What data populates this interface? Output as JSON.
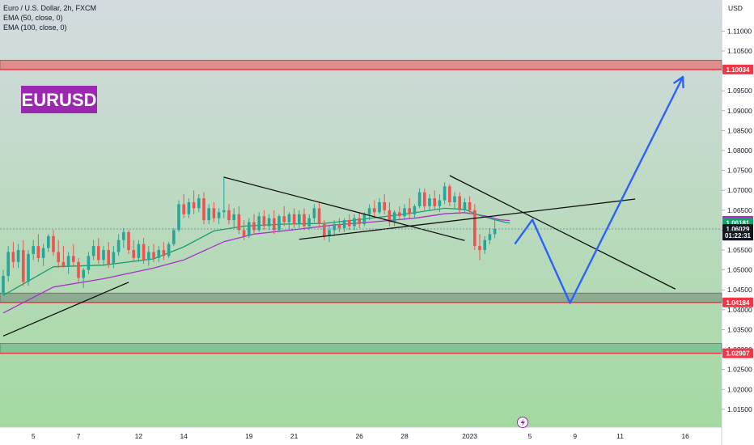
{
  "header": {
    "symbol_line": "Euro / U.S. Dollar, 2h, FXCM",
    "indicators": [
      "EMA (50, close, 0)",
      "EMA (100, close, 0)"
    ]
  },
  "watermark_label": "EURUSD",
  "colors": {
    "bg_top": "#d4dbe0",
    "bg_bottom": "#a3d9a0",
    "ema50": "#16a06a",
    "ema100": "#a533c8",
    "up_candle": "#26a69a",
    "down_candle": "#ef5350",
    "resistance_line": "#f23645",
    "projection": "#2962ff",
    "trend_line": "#111111",
    "label_purple": "#9c27b0"
  },
  "chart_data": {
    "type": "candlestick",
    "currency_label": "USD",
    "ylim": [
      1.0105,
      1.1178
    ],
    "y_ticks": [
      "1.11000",
      "1.10500",
      "1.10000",
      "1.09500",
      "1.09000",
      "1.08500",
      "1.08000",
      "1.07500",
      "1.07000",
      "1.06500",
      "1.06000",
      "1.05500",
      "1.05000",
      "1.04500",
      "1.04000",
      "1.03500",
      "1.03000",
      "1.02500",
      "1.02000",
      "1.01500"
    ],
    "x_ticks": [
      {
        "label": "5",
        "idx": 6
      },
      {
        "label": "7",
        "idx": 15
      },
      {
        "label": "12",
        "idx": 27
      },
      {
        "label": "14",
        "idx": 36
      },
      {
        "label": "19",
        "idx": 49
      },
      {
        "label": "21",
        "idx": 58
      },
      {
        "label": "26",
        "idx": 71
      },
      {
        "label": "28",
        "idx": 80
      },
      {
        "label": "2023",
        "idx": 93
      },
      {
        "label": "5",
        "idx": 105
      },
      {
        "label": "9",
        "idx": 114
      },
      {
        "label": "11",
        "idx": 123
      },
      {
        "label": "16",
        "idx": 136
      }
    ],
    "price_labels": [
      {
        "text": "1.10034",
        "value": 1.10034,
        "color": "#f23645"
      },
      {
        "text": "1.06235",
        "value": 1.06235,
        "color": "#a533c8"
      },
      {
        "text": "1.06181",
        "value": 1.06181,
        "color": "#16a06a"
      },
      {
        "text": "1.06029",
        "value": 1.06029,
        "color": "#131722"
      },
      {
        "text": "01:22:31",
        "value": 1.05862,
        "color": "#131722"
      },
      {
        "text": "1.04184",
        "value": 1.04184,
        "color": "#f23645"
      },
      {
        "text": "1.02907",
        "value": 1.02907,
        "color": "#f23645"
      }
    ],
    "zones": [
      {
        "from": 1.10034,
        "to": 1.1027,
        "color": "#e57373",
        "line": "#f23645"
      },
      {
        "from": 1.04184,
        "to": 1.0442,
        "color": "#7f9b86",
        "line": "#f23645"
      },
      {
        "from": 1.02907,
        "to": 1.0315,
        "color": "#6fbf8e",
        "line": "#f23645"
      }
    ],
    "trend_lines": [
      {
        "from": [
          0,
          1.0334
        ],
        "to": [
          25,
          1.0469
        ]
      },
      {
        "from": [
          44,
          1.0733
        ],
        "to": [
          92,
          1.0574
        ]
      },
      {
        "from": [
          59,
          1.0577
        ],
        "to": [
          126,
          1.0678
        ]
      },
      {
        "from": [
          89,
          1.0737
        ],
        "to": [
          134,
          1.0452
        ]
      }
    ],
    "projection": [
      [
        102,
        1.0565
      ],
      [
        105.5,
        1.0626
      ],
      [
        113,
        1.0417
      ],
      [
        135.5,
        1.0985
      ]
    ],
    "ohlc": [
      [
        1.044,
        1.05,
        1.0435,
        1.0485
      ],
      [
        1.0485,
        1.056,
        1.047,
        1.0545
      ],
      [
        1.0545,
        1.057,
        1.0505,
        1.052
      ],
      [
        1.052,
        1.0565,
        1.0505,
        1.055
      ],
      [
        1.055,
        1.0575,
        1.046,
        1.047
      ],
      [
        1.047,
        1.055,
        1.046,
        1.054
      ],
      [
        1.054,
        1.0575,
        1.0525,
        1.056
      ],
      [
        1.056,
        1.059,
        1.052,
        1.053
      ],
      [
        1.053,
        1.0565,
        1.051,
        1.0555
      ],
      [
        1.0555,
        1.059,
        1.0545,
        1.0585
      ],
      [
        1.0585,
        1.06,
        1.0535,
        1.0545
      ],
      [
        1.0545,
        1.0575,
        1.0505,
        1.052
      ],
      [
        1.052,
        1.056,
        1.0505,
        1.051
      ],
      [
        1.051,
        1.0545,
        1.049,
        1.0535
      ],
      [
        1.0535,
        1.0565,
        1.051,
        1.052
      ],
      [
        1.052,
        1.053,
        1.047,
        1.048
      ],
      [
        1.048,
        1.0505,
        1.0455,
        1.05
      ],
      [
        1.05,
        1.0545,
        1.049,
        1.0535
      ],
      [
        1.0535,
        1.0575,
        1.0525,
        1.056
      ],
      [
        1.056,
        1.058,
        1.0515,
        1.0525
      ],
      [
        1.0525,
        1.056,
        1.051,
        1.055
      ],
      [
        1.055,
        1.057,
        1.0505,
        1.0515
      ],
      [
        1.0515,
        1.056,
        1.0505,
        1.0545
      ],
      [
        1.0545,
        1.059,
        1.0535,
        1.0575
      ],
      [
        1.0575,
        1.0605,
        1.0555,
        1.0595
      ],
      [
        1.0595,
        1.06,
        1.054,
        1.055
      ],
      [
        1.055,
        1.0575,
        1.052,
        1.053
      ],
      [
        1.053,
        1.0575,
        1.052,
        1.0565
      ],
      [
        1.0565,
        1.058,
        1.0515,
        1.0525
      ],
      [
        1.0525,
        1.056,
        1.051,
        1.0545
      ],
      [
        1.0545,
        1.0565,
        1.052,
        1.053
      ],
      [
        1.053,
        1.056,
        1.052,
        1.055
      ],
      [
        1.055,
        1.057,
        1.0525,
        1.0535
      ],
      [
        1.0535,
        1.057,
        1.053,
        1.0565
      ],
      [
        1.0565,
        1.0605,
        1.056,
        1.06
      ],
      [
        1.06,
        1.0675,
        1.0595,
        1.0665
      ],
      [
        1.0665,
        1.069,
        1.063,
        1.064
      ],
      [
        1.064,
        1.068,
        1.063,
        1.067
      ],
      [
        1.067,
        1.07,
        1.064,
        1.0655
      ],
      [
        1.0655,
        1.069,
        1.0645,
        1.068
      ],
      [
        1.068,
        1.0695,
        1.0615,
        1.0625
      ],
      [
        1.0625,
        1.0665,
        1.0615,
        1.0655
      ],
      [
        1.0655,
        1.067,
        1.062,
        1.063
      ],
      [
        1.063,
        1.0655,
        1.0615,
        1.0645
      ],
      [
        1.0645,
        1.0735,
        1.063,
        1.065
      ],
      [
        1.065,
        1.0665,
        1.0615,
        1.0625
      ],
      [
        1.0625,
        1.0655,
        1.0605,
        1.064
      ],
      [
        1.064,
        1.066,
        1.059,
        1.06
      ],
      [
        1.06,
        1.0625,
        1.0575,
        1.0585
      ],
      [
        1.0585,
        1.063,
        1.058,
        1.062
      ],
      [
        1.062,
        1.064,
        1.059,
        1.06
      ],
      [
        1.06,
        1.0645,
        1.0595,
        1.0635
      ],
      [
        1.0635,
        1.065,
        1.06,
        1.061
      ],
      [
        1.061,
        1.064,
        1.06,
        1.063
      ],
      [
        1.063,
        1.065,
        1.059,
        1.06
      ],
      [
        1.06,
        1.064,
        1.0595,
        1.0635
      ],
      [
        1.0635,
        1.066,
        1.061,
        1.062
      ],
      [
        1.062,
        1.0645,
        1.06,
        1.064
      ],
      [
        1.064,
        1.0655,
        1.0605,
        1.0615
      ],
      [
        1.0615,
        1.065,
        1.0605,
        1.064
      ],
      [
        1.064,
        1.0655,
        1.06,
        1.061
      ],
      [
        1.061,
        1.064,
        1.06,
        1.063
      ],
      [
        1.063,
        1.0665,
        1.062,
        1.0655
      ],
      [
        1.0655,
        1.067,
        1.0605,
        1.0615
      ],
      [
        1.0615,
        1.0625,
        1.0575,
        1.0585
      ],
      [
        1.0585,
        1.061,
        1.057,
        1.06
      ],
      [
        1.06,
        1.0625,
        1.0585,
        1.0615
      ],
      [
        1.0615,
        1.063,
        1.0595,
        1.0605
      ],
      [
        1.0605,
        1.063,
        1.0595,
        1.0625
      ],
      [
        1.0625,
        1.064,
        1.06,
        1.061
      ],
      [
        1.061,
        1.064,
        1.06,
        1.063
      ],
      [
        1.063,
        1.0645,
        1.0605,
        1.0615
      ],
      [
        1.0615,
        1.0645,
        1.061,
        1.064
      ],
      [
        1.064,
        1.0665,
        1.0625,
        1.0655
      ],
      [
        1.0655,
        1.0675,
        1.0635,
        1.0645
      ],
      [
        1.0645,
        1.068,
        1.064,
        1.067
      ],
      [
        1.067,
        1.069,
        1.064,
        1.065
      ],
      [
        1.065,
        1.067,
        1.061,
        1.062
      ],
      [
        1.062,
        1.065,
        1.061,
        1.0645
      ],
      [
        1.0645,
        1.066,
        1.0625,
        1.0635
      ],
      [
        1.0635,
        1.0665,
        1.0625,
        1.0655
      ],
      [
        1.0655,
        1.068,
        1.063,
        1.064
      ],
      [
        1.064,
        1.0665,
        1.063,
        1.066
      ],
      [
        1.066,
        1.0705,
        1.0655,
        1.0695
      ],
      [
        1.0695,
        1.0705,
        1.065,
        1.066
      ],
      [
        1.066,
        1.069,
        1.065,
        1.068
      ],
      [
        1.068,
        1.07,
        1.065,
        1.066
      ],
      [
        1.066,
        1.069,
        1.0645,
        1.0675
      ],
      [
        1.0675,
        1.072,
        1.0665,
        1.071
      ],
      [
        1.071,
        1.0715,
        1.066,
        1.067
      ],
      [
        1.067,
        1.0695,
        1.0655,
        1.0685
      ],
      [
        1.0685,
        1.0695,
        1.064,
        1.065
      ],
      [
        1.065,
        1.068,
        1.0645,
        1.067
      ],
      [
        1.067,
        1.0685,
        1.064,
        1.065
      ],
      [
        1.065,
        1.0665,
        1.055,
        1.056
      ],
      [
        1.056,
        1.059,
        1.0525,
        1.055
      ],
      [
        1.055,
        1.0585,
        1.054,
        1.0575
      ],
      [
        1.0575,
        1.0605,
        1.0565,
        1.059
      ],
      [
        1.059,
        1.0625,
        1.058,
        1.0603
      ]
    ],
    "ema50": [
      [
        0,
        1.0436
      ],
      [
        10,
        1.0508
      ],
      [
        20,
        1.0512
      ],
      [
        30,
        1.0528
      ],
      [
        36,
        1.0558
      ],
      [
        42,
        1.0598
      ],
      [
        48,
        1.061
      ],
      [
        56,
        1.0615
      ],
      [
        64,
        1.0617
      ],
      [
        72,
        1.0628
      ],
      [
        80,
        1.064
      ],
      [
        88,
        1.0655
      ],
      [
        92,
        1.0652
      ],
      [
        95,
        1.0637
      ],
      [
        98,
        1.0626
      ],
      [
        100,
        1.062
      ],
      [
        101,
        1.0618
      ]
    ],
    "ema100": [
      [
        0,
        1.0392
      ],
      [
        10,
        1.0457
      ],
      [
        20,
        1.0478
      ],
      [
        30,
        1.0505
      ],
      [
        36,
        1.0525
      ],
      [
        44,
        1.0571
      ],
      [
        50,
        1.059
      ],
      [
        58,
        1.0601
      ],
      [
        66,
        1.0613
      ],
      [
        74,
        1.0621
      ],
      [
        82,
        1.063
      ],
      [
        88,
        1.0641
      ],
      [
        92,
        1.0644
      ],
      [
        96,
        1.0636
      ],
      [
        99,
        1.0626
      ],
      [
        101,
        1.0624
      ]
    ]
  }
}
